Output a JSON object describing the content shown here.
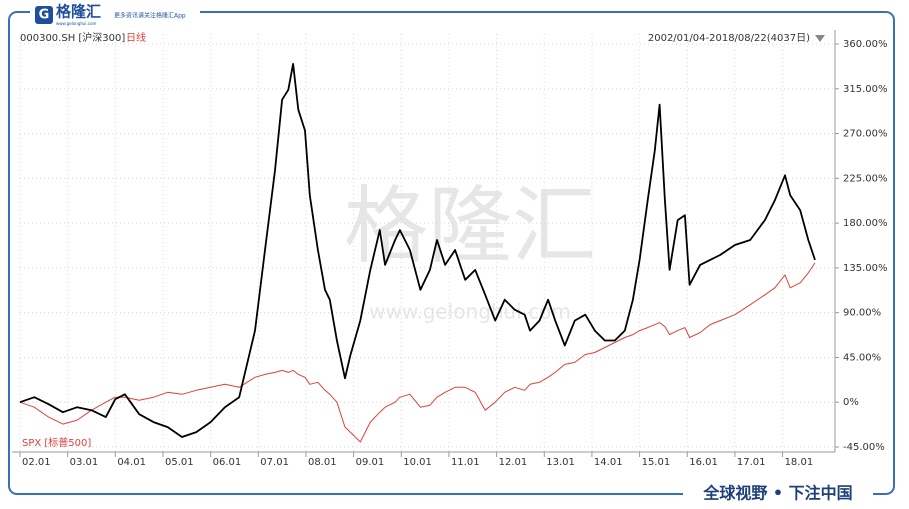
{
  "header": {
    "logo": "格隆汇",
    "site": "www.gelonghui.com",
    "tagline": "更多资讯请关注格隆汇App"
  },
  "chart_data": {
    "type": "line",
    "period": "日线",
    "range_label": "2002/01/04-2018/08/22(4037日)",
    "x": [
      2002.0,
      2002.3,
      2002.6,
      2002.9,
      2003.2,
      2003.5,
      2003.8,
      2004.0,
      2004.2,
      2004.5,
      2004.8,
      2005.1,
      2005.4,
      2005.7,
      2006.0,
      2006.3,
      2006.6,
      2006.93,
      2007.14,
      2007.35,
      2007.5,
      2007.63,
      2007.73,
      2007.84,
      2007.98,
      2008.08,
      2008.25,
      2008.4,
      2008.5,
      2008.65,
      2008.82,
      2008.93,
      2009.14,
      2009.35,
      2009.55,
      2009.66,
      2009.87,
      2009.97,
      2010.18,
      2010.4,
      2010.6,
      2010.75,
      2010.92,
      2011.13,
      2011.34,
      2011.55,
      2011.76,
      2011.97,
      2012.17,
      2012.38,
      2012.59,
      2012.7,
      2012.9,
      2013.08,
      2013.23,
      2013.43,
      2013.64,
      2013.86,
      2014.06,
      2014.27,
      2014.48,
      2014.69,
      2014.86,
      2015.0,
      2015.17,
      2015.32,
      2015.42,
      2015.53,
      2015.63,
      2015.8,
      2015.95,
      2016.05,
      2016.27,
      2016.48,
      2016.69,
      2017.0,
      2017.32,
      2017.63,
      2017.84,
      2018.05,
      2018.16,
      2018.37,
      2018.54,
      2018.68
    ],
    "series": [
      {
        "name": "000300.SH [沪深300]",
        "color": "#000000",
        "values": [
          0,
          5,
          -2,
          -10,
          -5,
          -8,
          -15,
          3,
          8,
          -12,
          -20,
          -25,
          -35,
          -30,
          -20,
          -5,
          5,
          72,
          153,
          233,
          304,
          314,
          340,
          294,
          273,
          208,
          153,
          113,
          103,
          62,
          24,
          47,
          82,
          133,
          173,
          138,
          163,
          173,
          153,
          113,
          133,
          163,
          138,
          153,
          123,
          133,
          108,
          82,
          103,
          93,
          88,
          72,
          82,
          103,
          82,
          57,
          82,
          88,
          72,
          62,
          62,
          72,
          103,
          143,
          203,
          253,
          299,
          203,
          133,
          183,
          188,
          118,
          138,
          143,
          148,
          158,
          163,
          183,
          203,
          228,
          208,
          193,
          163,
          143
        ]
      },
      {
        "name": "SPX [标普500]",
        "color": "#e0403a",
        "values": [
          0,
          -5,
          -15,
          -22,
          -18,
          -8,
          0,
          5,
          5,
          2,
          5,
          10,
          8,
          12,
          15,
          18,
          15,
          25,
          28,
          30,
          32,
          30,
          32,
          28,
          25,
          18,
          20,
          12,
          8,
          0,
          -25,
          -30,
          -40,
          -20,
          -10,
          -5,
          0,
          5,
          8,
          -5,
          -3,
          5,
          10,
          15,
          15,
          10,
          -8,
          0,
          10,
          15,
          12,
          18,
          20,
          25,
          30,
          38,
          40,
          48,
          50,
          55,
          60,
          65,
          68,
          72,
          75,
          78,
          80,
          76,
          68,
          72,
          75,
          65,
          70,
          78,
          82,
          88,
          98,
          108,
          115,
          128,
          115,
          120,
          130,
          140
        ]
      }
    ],
    "xlim": [
      2002,
      2019.1
    ],
    "xticks": [
      {
        "value": 2002,
        "label": "02.01"
      },
      {
        "value": 2003,
        "label": "03.01"
      },
      {
        "value": 2004,
        "label": "04.01"
      },
      {
        "value": 2005,
        "label": "05.01"
      },
      {
        "value": 2006,
        "label": "06.01"
      },
      {
        "value": 2007,
        "label": "07.01"
      },
      {
        "value": 2008,
        "label": "08.01"
      },
      {
        "value": 2009,
        "label": "09.01"
      },
      {
        "value": 2010,
        "label": "10.01"
      },
      {
        "value": 2011,
        "label": "11.01"
      },
      {
        "value": 2012,
        "label": "12.01"
      },
      {
        "value": 2013,
        "label": "13.01"
      },
      {
        "value": 2014,
        "label": "14.01"
      },
      {
        "value": 2015,
        "label": "15.01"
      },
      {
        "value": 2016,
        "label": "16.01"
      },
      {
        "value": 2017,
        "label": "17.01"
      },
      {
        "value": 2018,
        "label": "18.01"
      }
    ],
    "ylim": [
      -45,
      360
    ],
    "yticks": [
      {
        "value": 360,
        "label": "360.00%"
      },
      {
        "value": 315,
        "label": "315.00%"
      },
      {
        "value": 270,
        "label": "270.00%"
      },
      {
        "value": 225,
        "label": "225.00%"
      },
      {
        "value": 180,
        "label": "180.00%"
      },
      {
        "value": 135,
        "label": "135.00%"
      },
      {
        "value": 90,
        "label": "90.00%"
      },
      {
        "value": 45,
        "label": "45.00%"
      },
      {
        "value": 0,
        "label": "0%"
      },
      {
        "value": -45,
        "label": "-45.00%"
      }
    ],
    "grid": true
  },
  "watermark": {
    "text": "格隆汇",
    "url": "www.gelonghui.com"
  },
  "footer": "全球视野 • 下注中国"
}
